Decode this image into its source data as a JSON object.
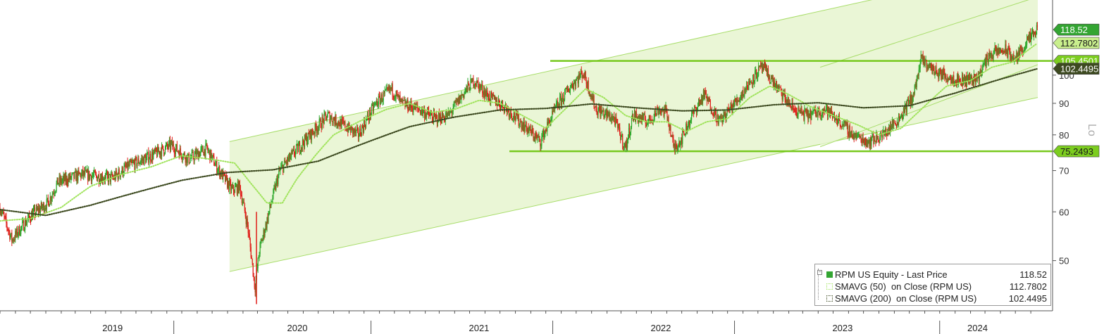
{
  "chart_data": {
    "type": "candlestick",
    "title": "",
    "xlabel": "",
    "ylabel": "",
    "y_scale": "log",
    "scale_label": "Lo",
    "ylim": [
      42,
      130
    ],
    "y_ticks": [
      50,
      60,
      70,
      80,
      90,
      100
    ],
    "x_range": [
      "2018-10-01",
      "2024-06-15"
    ],
    "year_labels": [
      {
        "label": "2019",
        "date": "2019-05-15"
      },
      {
        "label": "2020",
        "date": "2020-05-20"
      },
      {
        "label": "2021",
        "date": "2021-05-20"
      },
      {
        "label": "2022",
        "date": "2022-05-20"
      },
      {
        "label": "2023",
        "date": "2023-05-20"
      },
      {
        "label": "2024",
        "date": "2024-02-15"
      }
    ],
    "year_separators": [
      "2019-09-15",
      "2020-10-15",
      "2021-10-15",
      "2022-10-15",
      "2023-12-01"
    ],
    "price_path": [
      [
        "2018-10-01",
        61
      ],
      [
        "2018-10-25",
        54
      ],
      [
        "2018-12-01",
        59
      ],
      [
        "2019-01-05",
        62
      ],
      [
        "2019-01-25",
        67
      ],
      [
        "2019-03-15",
        69
      ],
      [
        "2019-05-15",
        68
      ],
      [
        "2019-06-15",
        71
      ],
      [
        "2019-08-01",
        74
      ],
      [
        "2019-09-10",
        77
      ],
      [
        "2019-10-15",
        73
      ],
      [
        "2019-11-20",
        76
      ],
      [
        "2019-12-10",
        71
      ],
      [
        "2020-01-10",
        65
      ],
      [
        "2020-01-25",
        66
      ],
      [
        "2020-02-10",
        57
      ],
      [
        "2020-02-25",
        45
      ],
      [
        "2020-03-05",
        52
      ],
      [
        "2020-03-20",
        58
      ],
      [
        "2020-04-15",
        70
      ],
      [
        "2020-05-15",
        75
      ],
      [
        "2020-06-15",
        80
      ],
      [
        "2020-07-20",
        86
      ],
      [
        "2020-08-20",
        83
      ],
      [
        "2020-09-20",
        80
      ],
      [
        "2020-10-25",
        90
      ],
      [
        "2020-11-25",
        95
      ],
      [
        "2020-12-15",
        90
      ],
      [
        "2021-01-20",
        88
      ],
      [
        "2021-02-20",
        85
      ],
      [
        "2021-03-20",
        86
      ],
      [
        "2021-04-25",
        95
      ],
      [
        "2021-05-10",
        98
      ],
      [
        "2021-06-10",
        92
      ],
      [
        "2021-07-10",
        89
      ],
      [
        "2021-08-10",
        84
      ],
      [
        "2021-09-20",
        78
      ],
      [
        "2021-10-20",
        88
      ],
      [
        "2021-11-20",
        96
      ],
      [
        "2021-12-15",
        101
      ],
      [
        "2022-01-10",
        88
      ],
      [
        "2022-02-15",
        85
      ],
      [
        "2022-03-10",
        76
      ],
      [
        "2022-03-25",
        86
      ],
      [
        "2022-04-25",
        84
      ],
      [
        "2022-05-15",
        88
      ],
      [
        "2022-06-01",
        87
      ],
      [
        "2022-06-15",
        76
      ],
      [
        "2022-07-01",
        79
      ],
      [
        "2022-07-25",
        87
      ],
      [
        "2022-08-15",
        93
      ],
      [
        "2022-09-15",
        84
      ],
      [
        "2022-10-25",
        92
      ],
      [
        "2022-11-25",
        100
      ],
      [
        "2022-12-10",
        103
      ],
      [
        "2023-01-10",
        95
      ],
      [
        "2023-02-10",
        88
      ],
      [
        "2023-03-10",
        86
      ],
      [
        "2023-04-15",
        88
      ],
      [
        "2023-05-15",
        84
      ],
      [
        "2023-06-10",
        80
      ],
      [
        "2023-07-10",
        78
      ],
      [
        "2023-08-10",
        80
      ],
      [
        "2023-09-10",
        85
      ],
      [
        "2023-10-10",
        93
      ],
      [
        "2023-10-25",
        106
      ],
      [
        "2023-11-25",
        101
      ],
      [
        "2024-01-10",
        98
      ],
      [
        "2024-02-15",
        99
      ],
      [
        "2024-03-10",
        108
      ],
      [
        "2024-04-10",
        110
      ],
      [
        "2024-05-01",
        106
      ],
      [
        "2024-05-20",
        112
      ],
      [
        "2024-06-15",
        118.5
      ]
    ],
    "series": [
      {
        "name": "RPM US Equity - Last Price",
        "value": "118.52",
        "color": "#33a532"
      },
      {
        "name": "SMAVG (50)  on Close (RPM US)",
        "value": "112.7802",
        "color": "#9fe35a"
      },
      {
        "name": "SMAVG (200)  on Close (RPM US)",
        "value": "102.4495",
        "color": "#3d4a20"
      }
    ],
    "sma50_path": [
      [
        "2018-10-01",
        58
      ],
      [
        "2018-12-01",
        58.5
      ],
      [
        "2019-02-01",
        61
      ],
      [
        "2019-04-01",
        66
      ],
      [
        "2019-06-01",
        69
      ],
      [
        "2019-08-01",
        71
      ],
      [
        "2019-10-01",
        74
      ],
      [
        "2019-12-01",
        73
      ],
      [
        "2020-01-15",
        72
      ],
      [
        "2020-02-15",
        67
      ],
      [
        "2020-03-20",
        62
      ],
      [
        "2020-04-20",
        62
      ],
      [
        "2020-05-20",
        68
      ],
      [
        "2020-07-01",
        75
      ],
      [
        "2020-08-01",
        80
      ],
      [
        "2020-09-20",
        84
      ],
      [
        "2020-11-15",
        88
      ],
      [
        "2021-01-01",
        90
      ],
      [
        "2021-02-15",
        87
      ],
      [
        "2021-04-01",
        88
      ],
      [
        "2021-05-20",
        91
      ],
      [
        "2021-07-01",
        90
      ],
      [
        "2021-08-15",
        86
      ],
      [
        "2021-10-01",
        82
      ],
      [
        "2021-11-15",
        89
      ],
      [
        "2021-12-20",
        95
      ],
      [
        "2022-01-25",
        92
      ],
      [
        "2022-03-10",
        86
      ],
      [
        "2022-04-20",
        84
      ],
      [
        "2022-06-01",
        84
      ],
      [
        "2022-07-10",
        81
      ],
      [
        "2022-08-20",
        84
      ],
      [
        "2022-10-01",
        85
      ],
      [
        "2022-11-15",
        92
      ],
      [
        "2022-12-25",
        96
      ],
      [
        "2023-02-01",
        93
      ],
      [
        "2023-03-15",
        89
      ],
      [
        "2023-05-01",
        86
      ],
      [
        "2023-06-20",
        83
      ],
      [
        "2023-08-01",
        80
      ],
      [
        "2023-09-15",
        82
      ],
      [
        "2023-10-25",
        88
      ],
      [
        "2023-12-15",
        96
      ],
      [
        "2024-02-01",
        98
      ],
      [
        "2024-03-15",
        103
      ],
      [
        "2024-04-25",
        105
      ],
      [
        "2024-06-15",
        112.78
      ]
    ],
    "sma200_path": [
      [
        "2018-10-01",
        60.5
      ],
      [
        "2019-01-01",
        59.2
      ],
      [
        "2019-04-01",
        61.5
      ],
      [
        "2019-07-01",
        64.5
      ],
      [
        "2019-10-01",
        67.5
      ],
      [
        "2020-01-01",
        69.5
      ],
      [
        "2020-04-01",
        70.2
      ],
      [
        "2020-07-01",
        72.5
      ],
      [
        "2020-10-01",
        77.5
      ],
      [
        "2021-01-01",
        82.5
      ],
      [
        "2021-04-01",
        85.5
      ],
      [
        "2021-07-01",
        87.8
      ],
      [
        "2021-10-01",
        88.3
      ],
      [
        "2022-01-01",
        89.8
      ],
      [
        "2022-04-01",
        88.5
      ],
      [
        "2022-07-01",
        87.5
      ],
      [
        "2022-10-01",
        87.8
      ],
      [
        "2023-01-01",
        89.5
      ],
      [
        "2023-04-01",
        90.2
      ],
      [
        "2023-07-01",
        88.5
      ],
      [
        "2023-10-01",
        89.2
      ],
      [
        "2024-01-01",
        93.5
      ],
      [
        "2024-04-01",
        98.5
      ],
      [
        "2024-06-15",
        102.45
      ]
    ],
    "horizontal_levels": [
      {
        "value": 105.4501,
        "label": "105.4501",
        "from": "2021-10-10",
        "to": "2024-06-15"
      },
      {
        "value": 75.2493,
        "label": "75.2493",
        "from": "2021-07-20",
        "to": "2024-06-15"
      }
    ],
    "channels": [
      {
        "name": "long",
        "from": "2020-01-05",
        "to": "2024-06-15",
        "upper": [
          78,
          152
        ],
        "lower": [
          48,
          92
        ],
        "shaded": true
      },
      {
        "name": "short",
        "from": "2023-04-05",
        "to": "2024-06-15",
        "upper": [
          103,
          134
        ],
        "lower": [
          76.5,
          104
        ],
        "shaded": true
      }
    ],
    "value_tags": [
      {
        "label": "118.52",
        "value": 118.52,
        "fill": "#33a532",
        "text": "#ffffff"
      },
      {
        "label": "112.7802",
        "value": 112.7802,
        "fill": "#c9ef8d",
        "text": "#1a1a1a"
      },
      {
        "label": "105.4501",
        "value": 105.4501,
        "fill": "#7ccd1f",
        "text": "#ffffff"
      },
      {
        "label": "102.4495",
        "value": 102.4495,
        "fill": "#3d4a20",
        "text": "#ffffff"
      },
      {
        "label": "75.2493",
        "value": 75.2493,
        "fill": "#7ccd1f",
        "text": "#1a1a1a"
      }
    ],
    "colors": {
      "up": "#2ea82c",
      "down": "#e0201b",
      "channel_fill": "#eaf6d6",
      "channel_line": "#a8dd6a",
      "level_line": "#76c81c"
    }
  }
}
